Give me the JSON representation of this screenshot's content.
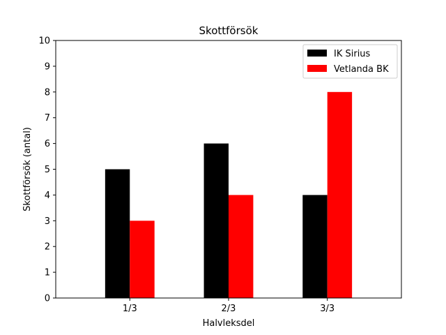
{
  "chart_data": {
    "type": "bar",
    "title": "Skottförsök",
    "xlabel": "Halvleksdel",
    "ylabel": "Skottförsök (antal)",
    "categories": [
      "1/3",
      "2/3",
      "3/3"
    ],
    "series": [
      {
        "name": "IK Sirius",
        "color": "#000000",
        "values": [
          5,
          6,
          4
        ]
      },
      {
        "name": "Vetlanda BK",
        "color": "#ff0000",
        "values": [
          3,
          4,
          8
        ]
      }
    ],
    "ylim": [
      0,
      10
    ],
    "yticks": [
      0,
      1,
      2,
      3,
      4,
      5,
      6,
      7,
      8,
      9,
      10
    ],
    "grid": false,
    "legend_position": "top-right"
  }
}
